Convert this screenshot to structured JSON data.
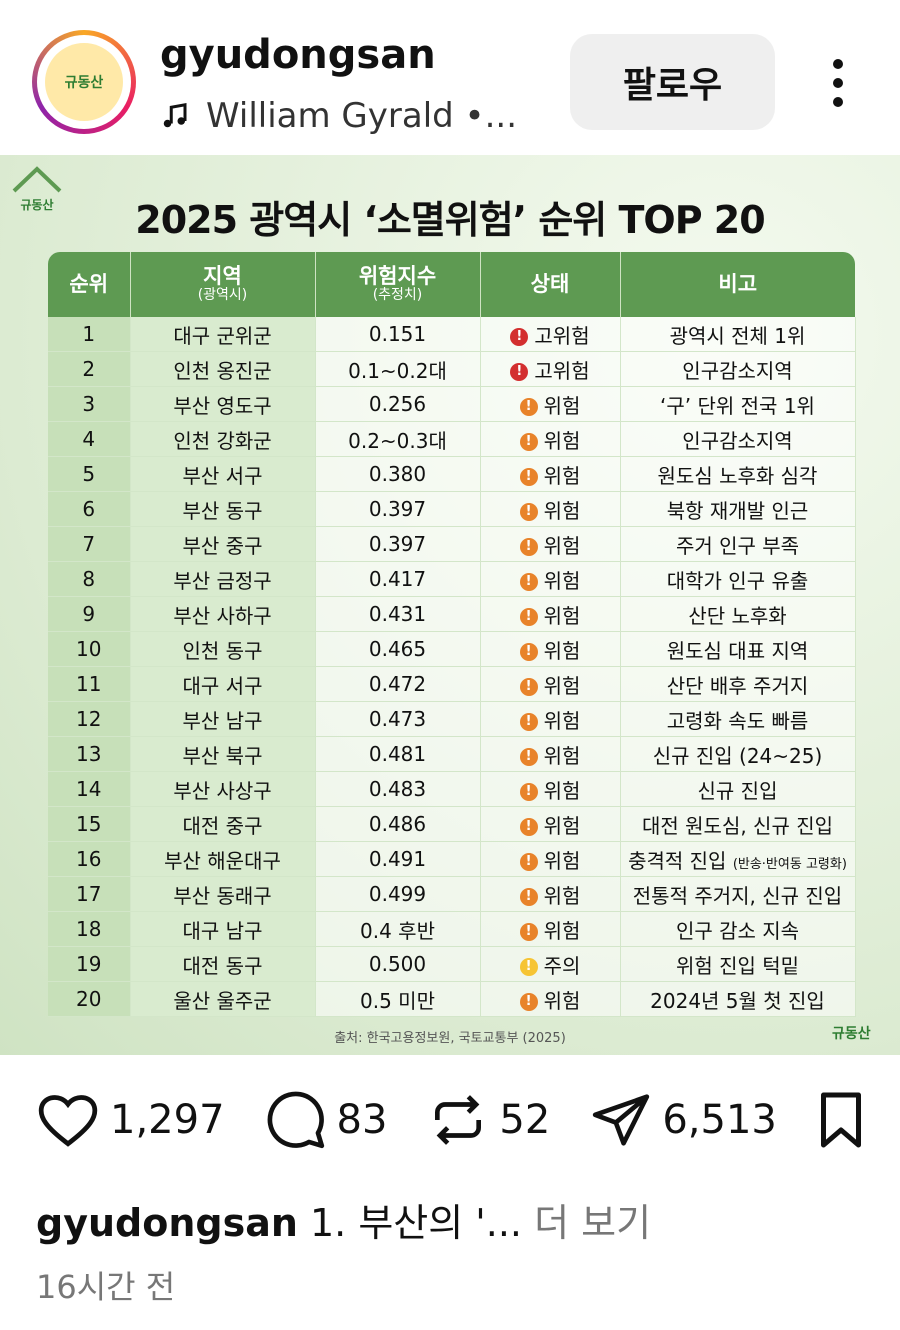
{
  "header": {
    "username": "gyudongsan",
    "music": "William Gyrald •...",
    "follow": "팔로우"
  },
  "image": {
    "logo": "규동산",
    "title": "2025 광역시 ‘소멸위험’ 순위 TOP 20",
    "table": {
      "columns": [
        {
          "label": "순위"
        },
        {
          "label": "지역",
          "sub": "(광역시)"
        },
        {
          "label": "위험지수",
          "sub": "(추정치)"
        },
        {
          "label": "상태"
        },
        {
          "label": "비고"
        }
      ],
      "rows": [
        {
          "rank": 1,
          "region": "대구 군위군",
          "index": "0.151",
          "status": "고위험",
          "note": "광역시 전체 1위"
        },
        {
          "rank": 2,
          "region": "인천 옹진군",
          "index": "0.1~0.2대",
          "status": "고위험",
          "note": "인구감소지역"
        },
        {
          "rank": 3,
          "region": "부산 영도구",
          "index": "0.256",
          "status": "위험",
          "note": "‘구’ 단위 전국 1위"
        },
        {
          "rank": 4,
          "region": "인천 강화군",
          "index": "0.2~0.3대",
          "status": "위험",
          "note": "인구감소지역"
        },
        {
          "rank": 5,
          "region": "부산 서구",
          "index": "0.380",
          "status": "위험",
          "note": "원도심 노후화 심각"
        },
        {
          "rank": 6,
          "region": "부산 동구",
          "index": "0.397",
          "status": "위험",
          "note": "북항 재개발 인근"
        },
        {
          "rank": 7,
          "region": "부산 중구",
          "index": "0.397",
          "status": "위험",
          "note": "주거 인구 부족"
        },
        {
          "rank": 8,
          "region": "부산 금정구",
          "index": "0.417",
          "status": "위험",
          "note": "대학가 인구 유출"
        },
        {
          "rank": 9,
          "region": "부산 사하구",
          "index": "0.431",
          "status": "위험",
          "note": "산단 노후화"
        },
        {
          "rank": 10,
          "region": "인천 동구",
          "index": "0.465",
          "status": "위험",
          "note": "원도심 대표 지역"
        },
        {
          "rank": 11,
          "region": "대구 서구",
          "index": "0.472",
          "status": "위험",
          "note": "산단 배후 주거지"
        },
        {
          "rank": 12,
          "region": "부산 남구",
          "index": "0.473",
          "status": "위험",
          "note": "고령화 속도 빠름"
        },
        {
          "rank": 13,
          "region": "부산 북구",
          "index": "0.481",
          "status": "위험",
          "note": "신규 진입 (24~25)"
        },
        {
          "rank": 14,
          "region": "부산 사상구",
          "index": "0.483",
          "status": "위험",
          "note": "신규 진입"
        },
        {
          "rank": 15,
          "region": "대전 중구",
          "index": "0.486",
          "status": "위험",
          "note": "대전 원도심, 신규 진입"
        },
        {
          "rank": 16,
          "region": "부산 해운대구",
          "index": "0.491",
          "status": "위험",
          "note": "충격적 진입",
          "note_detail": "(반송·반여동 고령화)"
        },
        {
          "rank": 17,
          "region": "부산 동래구",
          "index": "0.499",
          "status": "위험",
          "note": "전통적 주거지, 신규 진입"
        },
        {
          "rank": 18,
          "region": "대구 남구",
          "index": "0.4 후반",
          "status": "위험",
          "note": "인구 감소 지속"
        },
        {
          "rank": 19,
          "region": "대전 동구",
          "index": "0.500",
          "status": "주의",
          "note": "위험 진입 턱밑"
        },
        {
          "rank": 20,
          "region": "울산 울주군",
          "index": "0.5 미만",
          "status": "위험",
          "note": "2024년 5월 첫 진입"
        }
      ]
    },
    "source": "출처: 한국고용정보원, 국토교통부 (2025)",
    "logo_bottom": "규동산"
  },
  "actions": {
    "likes": "1,297",
    "comments": "83",
    "reposts": "52",
    "shares": "6,513"
  },
  "caption": {
    "username": "gyudongsan",
    "text": "1. 부산의 '...",
    "more": "더 보기"
  },
  "time": "16시간 전"
}
